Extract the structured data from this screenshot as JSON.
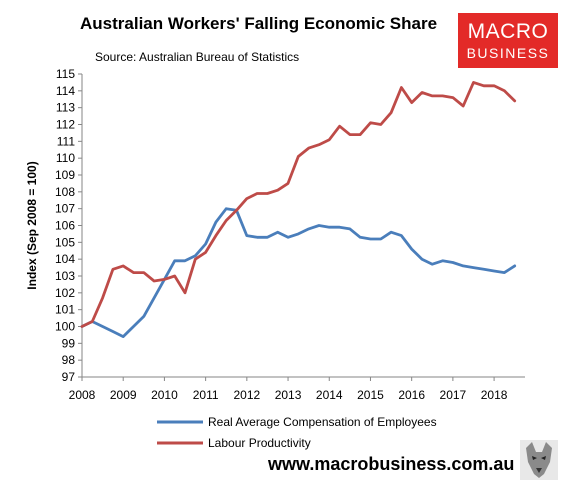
{
  "header": {
    "title": "Australian Workers' Falling Economic Share",
    "source": "Source: Australian Bureau of Statistics"
  },
  "logo": {
    "top": "MACRO",
    "bottom": "BUSINESS",
    "color": "#e32a28"
  },
  "footer": {
    "url": "www.macrobusiness.com.au"
  },
  "chart_data": {
    "type": "line",
    "title": "Australian Workers' Falling Economic Share",
    "ylabel": "Index (Sep 2008 = 100)",
    "xlabel": "",
    "xlim": [
      2008,
      2018.75
    ],
    "ylim": [
      97,
      115
    ],
    "x_ticks": [
      "2008",
      "2009",
      "2010",
      "2011",
      "2012",
      "2013",
      "2014",
      "2015",
      "2016",
      "2017",
      "2018"
    ],
    "y_ticks": [
      "97",
      "98",
      "99",
      "100",
      "101",
      "102",
      "103",
      "104",
      "105",
      "106",
      "107",
      "108",
      "109",
      "110",
      "111",
      "112",
      "113",
      "114",
      "115"
    ],
    "grid": false,
    "legend": "bottom",
    "series": [
      {
        "name": "Real Average Compensation of Employees",
        "color": "#4a7ebb",
        "points": [
          [
            2008.0,
            100.0
          ],
          [
            2008.25,
            100.3
          ],
          [
            2008.5,
            100.0
          ],
          [
            2008.75,
            99.7
          ],
          [
            2009.0,
            99.4
          ],
          [
            2009.25,
            100.0
          ],
          [
            2009.5,
            100.6
          ],
          [
            2009.75,
            101.7
          ],
          [
            2010.0,
            102.8
          ],
          [
            2010.25,
            103.9
          ],
          [
            2010.5,
            103.9
          ],
          [
            2010.75,
            104.2
          ],
          [
            2011.0,
            104.9
          ],
          [
            2011.25,
            106.2
          ],
          [
            2011.5,
            107.0
          ],
          [
            2011.75,
            106.9
          ],
          [
            2012.0,
            105.4
          ],
          [
            2012.25,
            105.3
          ],
          [
            2012.5,
            105.3
          ],
          [
            2012.75,
            105.6
          ],
          [
            2013.0,
            105.3
          ],
          [
            2013.25,
            105.5
          ],
          [
            2013.5,
            105.8
          ],
          [
            2013.75,
            106.0
          ],
          [
            2014.0,
            105.9
          ],
          [
            2014.25,
            105.9
          ],
          [
            2014.5,
            105.8
          ],
          [
            2014.75,
            105.3
          ],
          [
            2015.0,
            105.2
          ],
          [
            2015.25,
            105.2
          ],
          [
            2015.5,
            105.6
          ],
          [
            2015.75,
            105.4
          ],
          [
            2016.0,
            104.6
          ],
          [
            2016.25,
            104.0
          ],
          [
            2016.5,
            103.7
          ],
          [
            2016.75,
            103.9
          ],
          [
            2017.0,
            103.8
          ],
          [
            2017.25,
            103.6
          ],
          [
            2017.5,
            103.5
          ],
          [
            2017.75,
            103.4
          ],
          [
            2018.0,
            103.3
          ],
          [
            2018.25,
            103.2
          ],
          [
            2018.5,
            103.6
          ]
        ]
      },
      {
        "name": "Labour Productivity",
        "color": "#be4b48",
        "points": [
          [
            2008.0,
            100.0
          ],
          [
            2008.25,
            100.3
          ],
          [
            2008.5,
            101.7
          ],
          [
            2008.75,
            103.4
          ],
          [
            2009.0,
            103.6
          ],
          [
            2009.25,
            103.2
          ],
          [
            2009.5,
            103.2
          ],
          [
            2009.75,
            102.7
          ],
          [
            2010.0,
            102.8
          ],
          [
            2010.25,
            103.0
          ],
          [
            2010.5,
            102.0
          ],
          [
            2010.75,
            104.0
          ],
          [
            2011.0,
            104.4
          ],
          [
            2011.25,
            105.4
          ],
          [
            2011.5,
            106.3
          ],
          [
            2011.75,
            106.9
          ],
          [
            2012.0,
            107.6
          ],
          [
            2012.25,
            107.9
          ],
          [
            2012.5,
            107.9
          ],
          [
            2012.75,
            108.1
          ],
          [
            2013.0,
            108.5
          ],
          [
            2013.25,
            110.1
          ],
          [
            2013.5,
            110.6
          ],
          [
            2013.75,
            110.8
          ],
          [
            2014.0,
            111.1
          ],
          [
            2014.25,
            111.9
          ],
          [
            2014.5,
            111.4
          ],
          [
            2014.75,
            111.4
          ],
          [
            2015.0,
            112.1
          ],
          [
            2015.25,
            112.0
          ],
          [
            2015.5,
            112.7
          ],
          [
            2015.75,
            114.2
          ],
          [
            2016.0,
            113.3
          ],
          [
            2016.25,
            113.9
          ],
          [
            2016.5,
            113.7
          ],
          [
            2016.75,
            113.7
          ],
          [
            2017.0,
            113.6
          ],
          [
            2017.25,
            113.1
          ],
          [
            2017.5,
            114.5
          ],
          [
            2017.75,
            114.3
          ],
          [
            2018.0,
            114.3
          ],
          [
            2018.25,
            114.0
          ],
          [
            2018.5,
            113.4
          ]
        ]
      }
    ]
  }
}
